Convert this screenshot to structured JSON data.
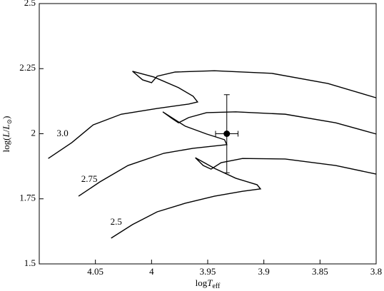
{
  "chart_data": {
    "type": "line",
    "x_label": [
      "log",
      "T",
      "eff"
    ],
    "y_label": [
      "log(",
      "L",
      "/",
      "L",
      "⊙",
      ")"
    ],
    "xlim": [
      4.1,
      3.8
    ],
    "xticks": [
      4.05,
      4,
      3.95,
      3.9,
      3.85,
      3.8
    ],
    "ylim": [
      1.5,
      2.5
    ],
    "yticks": [
      1.5,
      1.75,
      2,
      2.25,
      2.5
    ],
    "color": "#000000",
    "series": [
      {
        "name": "3.0",
        "x": [
          4.092,
          4.071,
          4.052,
          4.027,
          3.995,
          3.967,
          3.959,
          3.963,
          3.976,
          3.998,
          4.017,
          4.008,
          4.0,
          3.995,
          3.979,
          3.944,
          3.893,
          3.843,
          3.8
        ],
        "values": [
          1.905,
          1.966,
          2.034,
          2.075,
          2.097,
          2.114,
          2.122,
          2.144,
          2.177,
          2.218,
          2.24,
          2.207,
          2.196,
          2.221,
          2.237,
          2.242,
          2.232,
          2.193,
          2.138
        ]
      },
      {
        "name": "2.75",
        "x": [
          4.065,
          4.046,
          4.021,
          3.989,
          3.963,
          3.933,
          3.935,
          3.951,
          3.97,
          3.99,
          3.982,
          3.976,
          3.967,
          3.951,
          3.925,
          3.881,
          3.836,
          3.8
        ],
        "values": [
          1.76,
          1.815,
          1.878,
          1.925,
          1.944,
          1.958,
          1.977,
          1.999,
          2.029,
          2.084,
          2.059,
          2.042,
          2.062,
          2.081,
          2.084,
          2.075,
          2.042,
          1.999
        ]
      },
      {
        "name": "2.5",
        "x": [
          4.036,
          4.017,
          3.995,
          3.97,
          3.944,
          3.919,
          3.903,
          3.906,
          3.925,
          3.944,
          3.961,
          3.954,
          3.947,
          3.938,
          3.919,
          3.881,
          3.836,
          3.8
        ],
        "values": [
          1.599,
          1.651,
          1.7,
          1.733,
          1.76,
          1.779,
          1.788,
          1.804,
          1.829,
          1.867,
          1.908,
          1.878,
          1.864,
          1.889,
          1.905,
          1.903,
          1.878,
          1.845
        ]
      }
    ],
    "point": {
      "x": 3.933,
      "y": 2.0,
      "xerr": 0.01,
      "yerr": 0.15
    }
  }
}
